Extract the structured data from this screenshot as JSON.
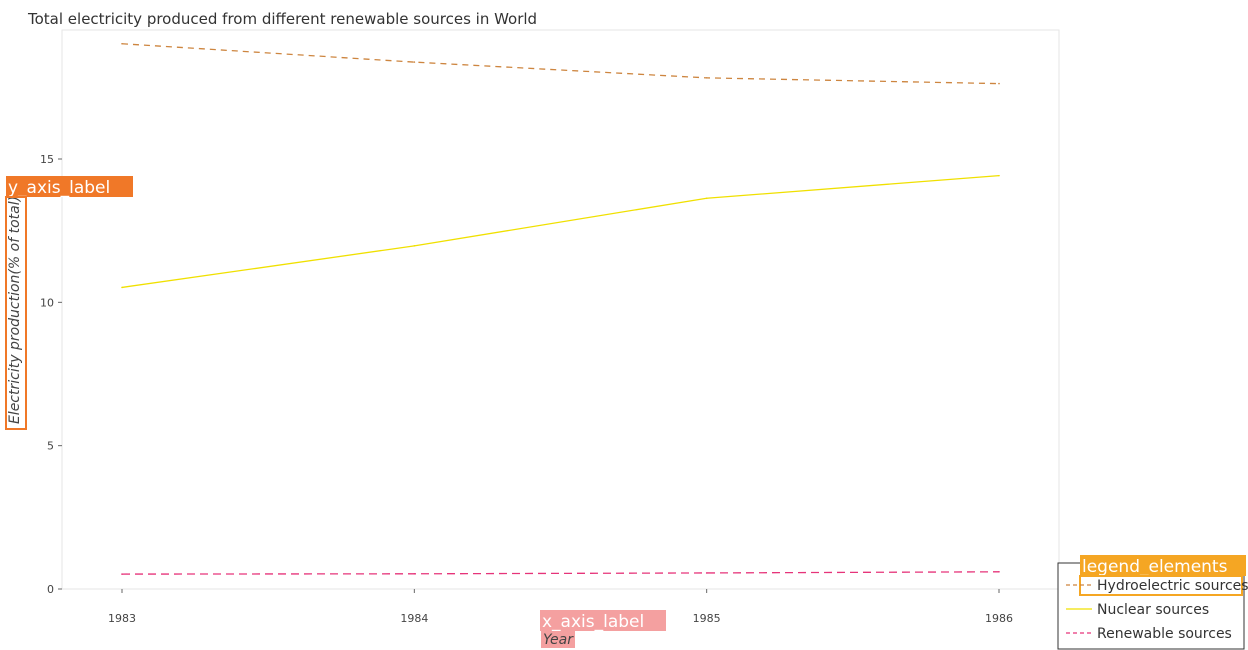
{
  "chart_data": {
    "type": "line",
    "title": "Total electricity produced from different renewable sources in World",
    "xlabel": "Year",
    "ylabel": "Electricity production(% of total)",
    "categories": [
      "1983",
      "1984",
      "1985",
      "1986"
    ],
    "ylim": [
      0,
      19.5
    ],
    "yticks": [
      0,
      5,
      10,
      15
    ],
    "grid": false,
    "legend_position": "bottom-right",
    "series": [
      {
        "name": "Hydroelectric sources",
        "values": [
          19.02,
          18.38,
          17.83,
          17.63
        ],
        "color": "#cd853f",
        "dash": "6,5"
      },
      {
        "name": "Nuclear sources",
        "values": [
          10.52,
          11.97,
          13.63,
          14.42
        ],
        "color": "#f0e000",
        "dash": ""
      },
      {
        "name": "Renewable sources",
        "values": [
          0.52,
          0.53,
          0.56,
          0.6
        ],
        "color": "#e6347a",
        "dash": "8,5"
      }
    ]
  },
  "annotations": {
    "y_axis_tag": "y_axis_label",
    "x_axis_tag": "x_axis_label",
    "legend_tag": "legend_elements"
  },
  "colors": {
    "y_tag_bg": "#f07828",
    "x_tag_bg": "#f4a0a0",
    "legend_tag_bg": "#f5a623"
  }
}
